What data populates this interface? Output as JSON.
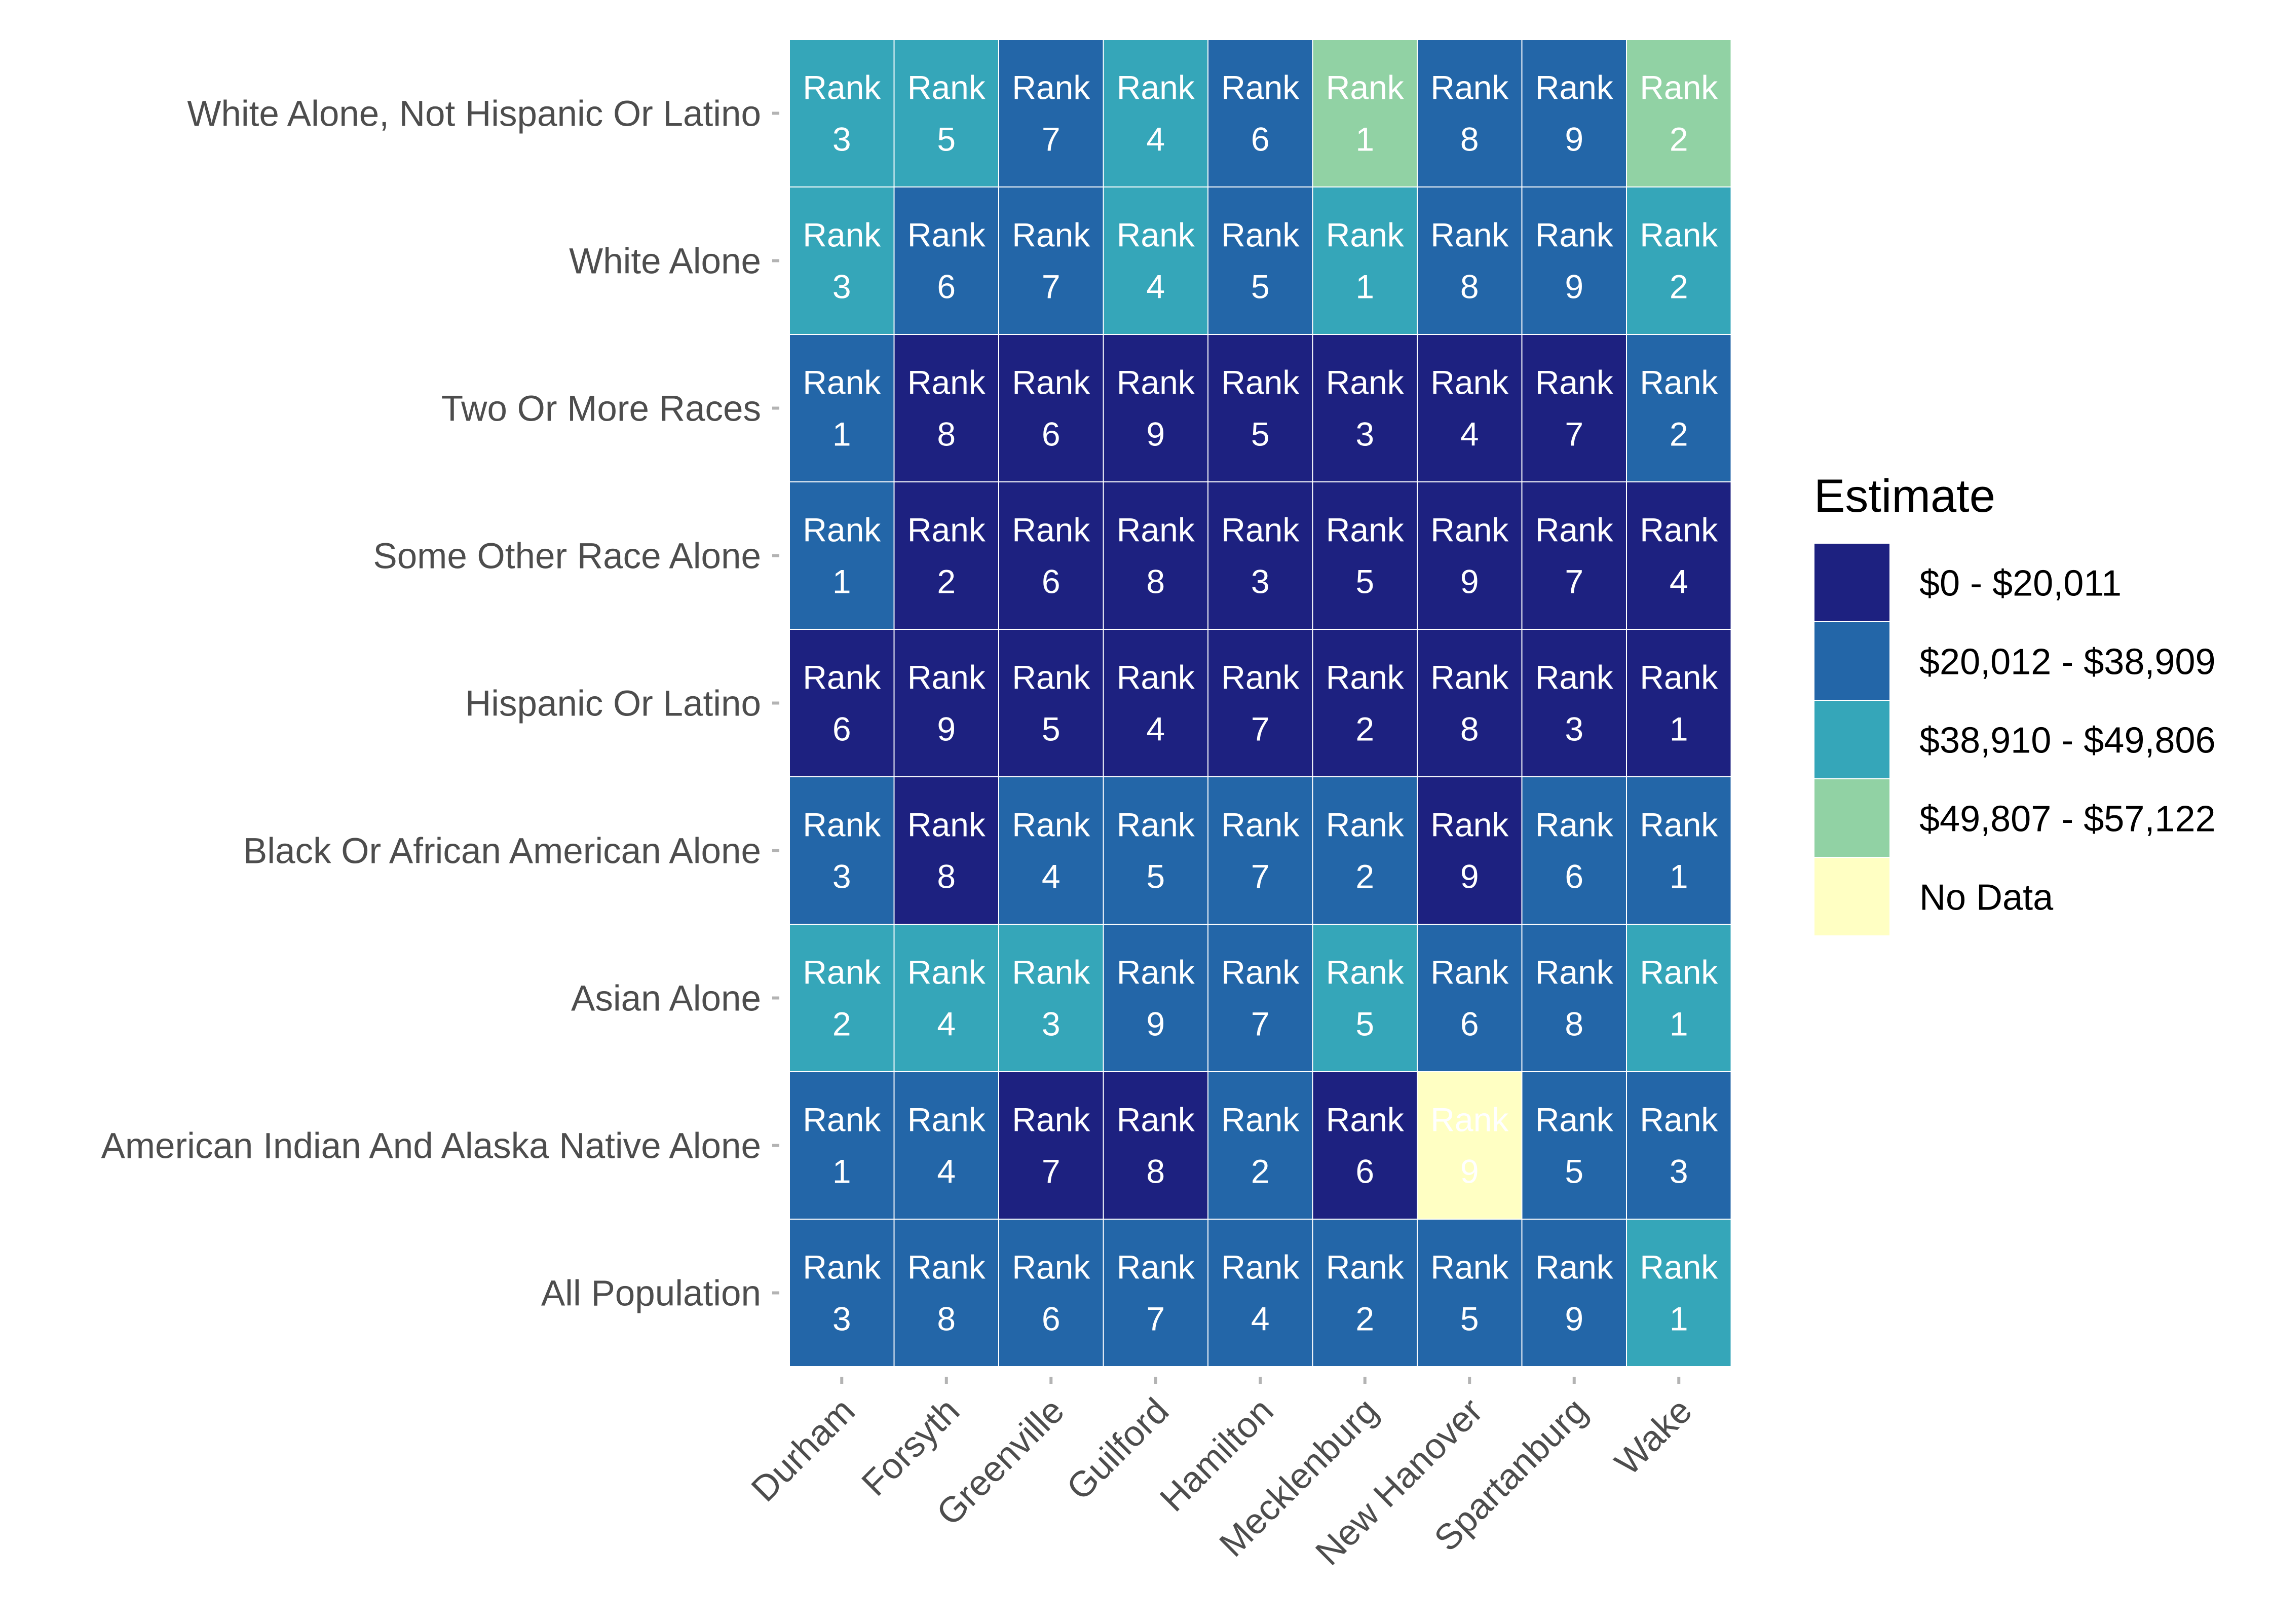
{
  "chart_data": {
    "type": "heatmap",
    "title": "",
    "xlabel": "",
    "ylabel": "",
    "x": [
      "Durham",
      "Forsyth",
      "Greenville",
      "Guilford",
      "Hamilton",
      "Mecklenburg",
      "New Hanover",
      "Spartanburg",
      "Wake"
    ],
    "y_top_to_bottom": [
      "White Alone, Not Hispanic Or Latino",
      "White Alone",
      "Two Or More Races",
      "Some Other Race Alone",
      "Hispanic Or Latino",
      "Black Or African American Alone",
      "Asian Alone",
      "American Indian And Alaska Native Alone",
      "All Population"
    ],
    "cell_prefix": "Rank",
    "ranks": [
      [
        3,
        5,
        7,
        4,
        6,
        1,
        8,
        9,
        2
      ],
      [
        3,
        6,
        7,
        4,
        5,
        1,
        8,
        9,
        2
      ],
      [
        1,
        8,
        6,
        9,
        5,
        3,
        4,
        7,
        2
      ],
      [
        1,
        2,
        6,
        8,
        3,
        5,
        9,
        7,
        4
      ],
      [
        6,
        9,
        5,
        4,
        7,
        2,
        8,
        3,
        1
      ],
      [
        3,
        8,
        4,
        5,
        7,
        2,
        9,
        6,
        1
      ],
      [
        2,
        4,
        3,
        9,
        7,
        5,
        6,
        8,
        1
      ],
      [
        1,
        4,
        7,
        8,
        2,
        6,
        9,
        5,
        3
      ],
      [
        3,
        8,
        6,
        7,
        4,
        2,
        5,
        9,
        1
      ]
    ],
    "estimate_bins": [
      [
        2,
        2,
        1,
        2,
        1,
        3,
        1,
        1,
        3
      ],
      [
        2,
        1,
        1,
        2,
        1,
        2,
        1,
        1,
        2
      ],
      [
        1,
        0,
        0,
        0,
        0,
        0,
        0,
        0,
        1
      ],
      [
        1,
        0,
        0,
        0,
        0,
        0,
        0,
        0,
        0
      ],
      [
        0,
        0,
        0,
        0,
        0,
        0,
        0,
        0,
        0
      ],
      [
        1,
        0,
        1,
        1,
        1,
        1,
        0,
        1,
        1
      ],
      [
        2,
        2,
        2,
        1,
        1,
        2,
        1,
        1,
        2
      ],
      [
        1,
        1,
        0,
        0,
        1,
        0,
        4,
        1,
        1
      ],
      [
        1,
        1,
        1,
        1,
        1,
        1,
        1,
        1,
        2
      ]
    ],
    "legend": {
      "title": "Estimate",
      "position": "right",
      "entries": [
        {
          "label": "$0 - $20,011",
          "color": "#1d2180"
        },
        {
          "label": "$20,012 - $38,909",
          "color": "#2366a8"
        },
        {
          "label": "$38,910 - $49,806",
          "color": "#35a6b9"
        },
        {
          "label": "$49,807 - $57,122",
          "color": "#91d2a4"
        },
        {
          "label": "No Data",
          "color": "#ffffc3"
        }
      ]
    },
    "grid": false
  }
}
